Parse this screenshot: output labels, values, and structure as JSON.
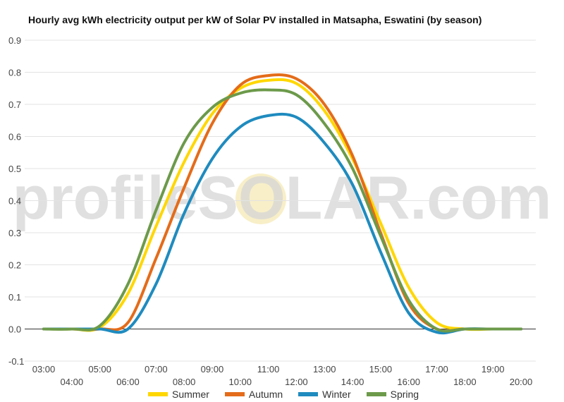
{
  "chart_data": {
    "type": "line",
    "title": "Hourly avg kWh electricity output per kW of Solar PV installed in Matsapha, Eswatini (by season)",
    "xlabel": "",
    "ylabel": "",
    "categories": [
      "03:00",
      "04:00",
      "05:00",
      "06:00",
      "07:00",
      "08:00",
      "09:00",
      "10:00",
      "11:00",
      "12:00",
      "13:00",
      "14:00",
      "15:00",
      "16:00",
      "17:00",
      "18:00",
      "19:00",
      "20:00"
    ],
    "ylim": [
      -0.1,
      0.9
    ],
    "yticks": [
      "-0.1",
      "0.0",
      "0.1",
      "0.2",
      "0.3",
      "0.4",
      "0.5",
      "0.6",
      "0.7",
      "0.8",
      "0.9"
    ],
    "grid": true,
    "legend_position": "bottom",
    "series": [
      {
        "name": "Summer",
        "color": "#FFD700",
        "values": [
          0.0,
          0.0,
          0.005,
          0.11,
          0.32,
          0.52,
          0.67,
          0.75,
          0.775,
          0.765,
          0.68,
          0.53,
          0.33,
          0.13,
          0.02,
          0.0,
          0.0,
          0.0
        ]
      },
      {
        "name": "Autumn",
        "color": "#E46C1A",
        "values": [
          0.0,
          0.0,
          0.0,
          0.02,
          0.22,
          0.44,
          0.64,
          0.76,
          0.79,
          0.78,
          0.7,
          0.54,
          0.3,
          0.08,
          0.0,
          0.0,
          0.0,
          0.0
        ]
      },
      {
        "name": "Winter",
        "color": "#1F8BBF",
        "values": [
          0.0,
          0.0,
          0.0,
          0.0,
          0.14,
          0.36,
          0.53,
          0.63,
          0.665,
          0.66,
          0.58,
          0.45,
          0.24,
          0.05,
          -0.01,
          0.0,
          0.0,
          0.0
        ]
      },
      {
        "name": "Spring",
        "color": "#6C9A4A",
        "values": [
          0.0,
          0.0,
          0.01,
          0.14,
          0.37,
          0.58,
          0.69,
          0.735,
          0.745,
          0.73,
          0.64,
          0.5,
          0.29,
          0.09,
          0.0,
          0.0,
          0.0,
          0.0
        ]
      }
    ]
  },
  "watermark": "profileSOLAR.com"
}
